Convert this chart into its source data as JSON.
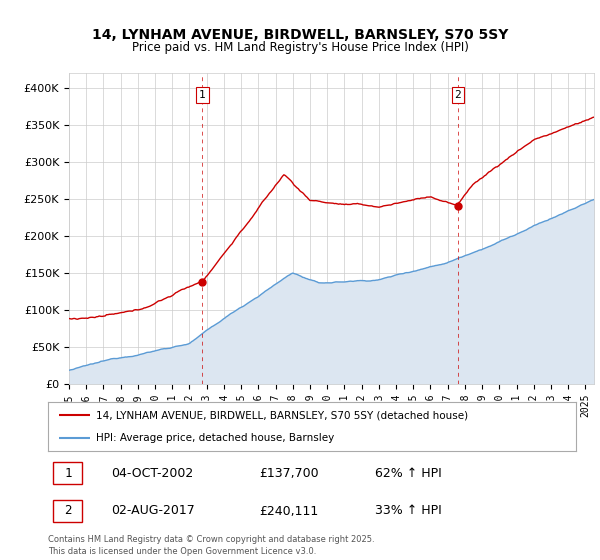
{
  "title": "14, LYNHAM AVENUE, BIRDWELL, BARNSLEY, S70 5SY",
  "subtitle": "Price paid vs. HM Land Registry's House Price Index (HPI)",
  "ylabel_ticks": [
    "£0",
    "£50K",
    "£100K",
    "£150K",
    "£200K",
    "£250K",
    "£300K",
    "£350K",
    "£400K"
  ],
  "ylim": [
    0,
    420000
  ],
  "xlim_start": 1995.0,
  "xlim_end": 2025.5,
  "sale1_date": 2002.75,
  "sale1_price": 137700,
  "sale1_label": "1",
  "sale2_date": 2017.58,
  "sale2_price": 240111,
  "sale2_label": "2",
  "red_line_color": "#cc0000",
  "blue_line_color": "#5b9bd5",
  "blue_fill_color": "#dce6f1",
  "dashed_line_color": "#cc0000",
  "grid_color": "#cccccc",
  "background_color": "#ffffff",
  "legend_line1": "14, LYNHAM AVENUE, BIRDWELL, BARNSLEY, S70 5SY (detached house)",
  "legend_line2": "HPI: Average price, detached house, Barnsley",
  "table_row1": [
    "1",
    "04-OCT-2002",
    "£137,700",
    "62% ↑ HPI"
  ],
  "table_row2": [
    "2",
    "02-AUG-2017",
    "£240,111",
    "33% ↑ HPI"
  ],
  "footnote": "Contains HM Land Registry data © Crown copyright and database right 2025.\nThis data is licensed under the Open Government Licence v3.0."
}
